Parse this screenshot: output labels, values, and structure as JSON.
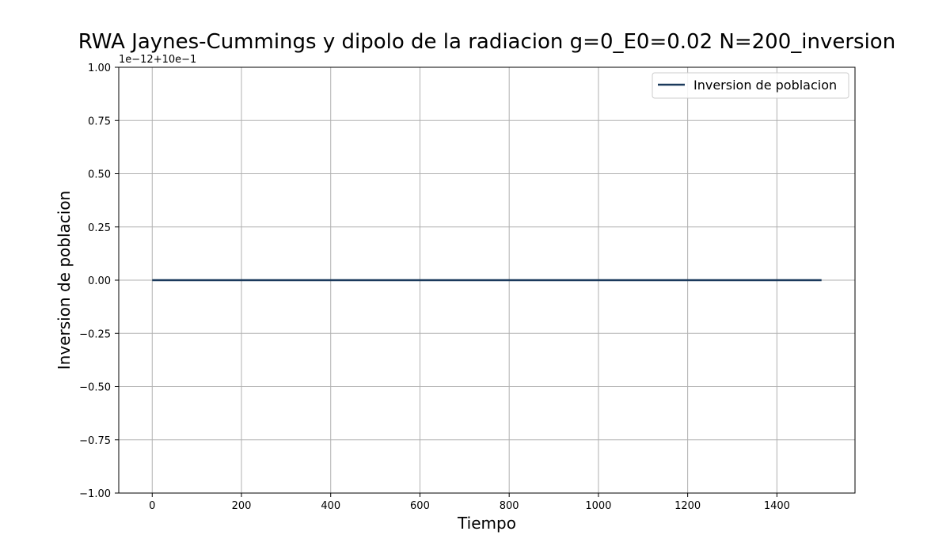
{
  "chart_data": {
    "type": "line",
    "title": "RWA Jaynes-Cummings y dipolo de la radiacion g=0_E0=0.02 N=200_inversion",
    "xlabel": "Tiempo",
    "ylabel": "Inversion de poblacion",
    "y_offset_text": "1e−12+10e−1",
    "xlim": [
      -75,
      1575
    ],
    "ylim": [
      -1.0,
      1.0
    ],
    "x_ticks": [
      0,
      200,
      400,
      600,
      800,
      1000,
      1200,
      1400
    ],
    "x_tick_labels": [
      "0",
      "200",
      "400",
      "600",
      "800",
      "1000",
      "1200",
      "1400"
    ],
    "y_ticks": [
      -1.0,
      -0.75,
      -0.5,
      -0.25,
      0.0,
      0.25,
      0.5,
      0.75,
      1.0
    ],
    "y_tick_labels": [
      "−1.00",
      "−0.75",
      "−0.50",
      "−0.25",
      "0.00",
      "0.25",
      "0.50",
      "0.75",
      "1.00"
    ],
    "grid": true,
    "legend_position": "top-right",
    "series": [
      {
        "name": "Inversion de poblacion",
        "color": "#1b3a5c",
        "x": [
          0,
          1500
        ],
        "y": [
          0.0,
          0.0
        ]
      }
    ]
  }
}
